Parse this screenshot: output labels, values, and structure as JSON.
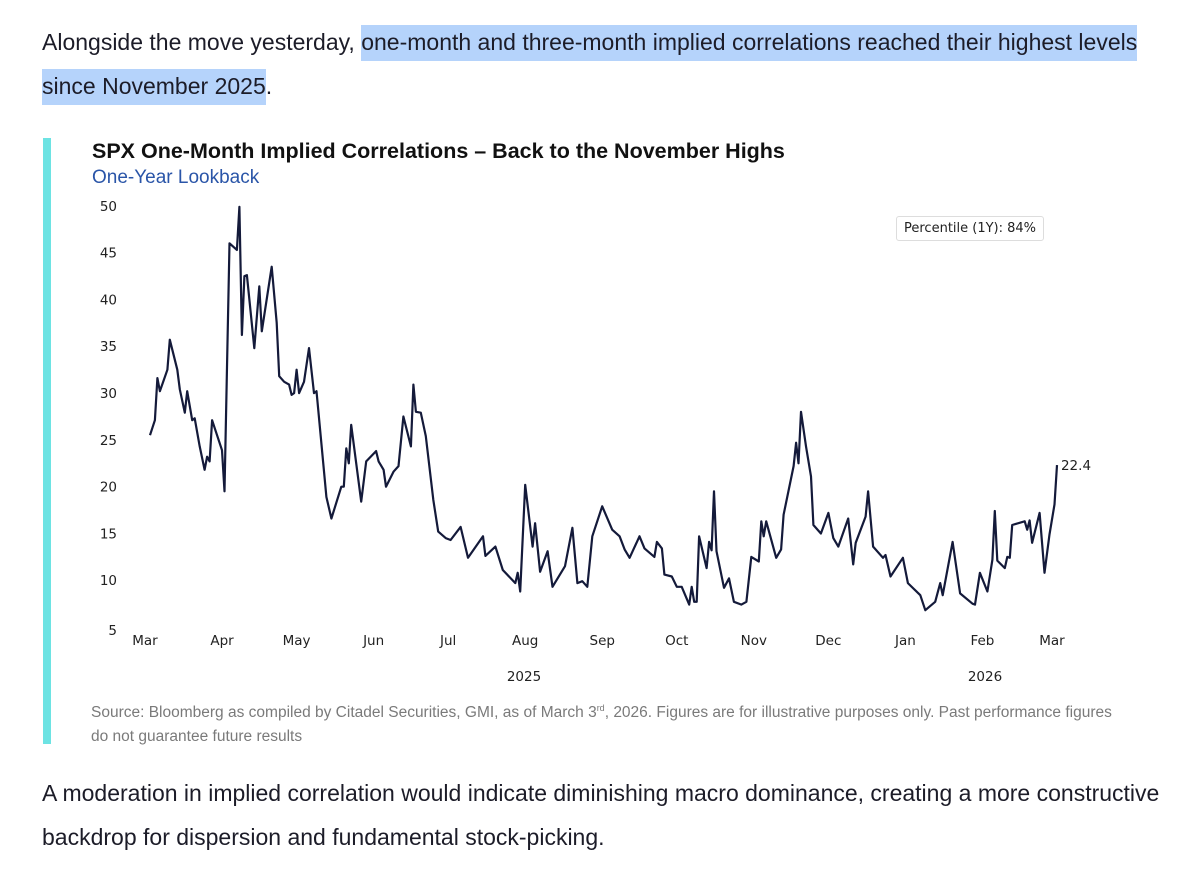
{
  "article": {
    "p1_before": "Alongside the move yesterday, ",
    "p1_highlight": "one-month and three-month implied correlations reached their highest levels since November 2025",
    "p1_after": ".",
    "p2": "A moderation in implied correlation would indicate diminishing macro dominance, creating a more constructive backdrop for dispersion and fundamental stock-picking.",
    "highlight_color": "#b5d3fb",
    "accent_color": "#6de3e3"
  },
  "chart_data": {
    "type": "line",
    "title": "SPX One-Month Implied Correlations – Back to the November Highs",
    "subtitle": "One-Year Lookback",
    "annotation_box": "Percentile (1Y): 84%",
    "last_value_label": "22.4",
    "ylim": [
      5,
      50
    ],
    "yticks": [
      "5",
      "10",
      "15",
      "20",
      "25",
      "30",
      "35",
      "40",
      "45",
      "50"
    ],
    "xlim": [
      "2025-03-01",
      "2026-03-01"
    ],
    "xtick_labels": [
      "Mar",
      "Apr",
      "May",
      "Jun",
      "Jul",
      "Aug",
      "Sep",
      "Oct",
      "Nov",
      "Dec",
      "Jan",
      "Feb",
      "Mar"
    ],
    "year_labels": [
      "2025",
      "2026"
    ],
    "grid": false,
    "line_color": "#141a3a",
    "source": "Source: Bloomberg as compiled by Citadel Securities, GMI, as of March 3",
    "source_sup": "rd",
    "source_rest": ", 2026. Figures are for illustrative purposes only. Past performance figures do not guarantee future results",
    "series": [
      {
        "points": [
          [
            "2025-03-03",
            25.6
          ],
          [
            "2025-03-05",
            27.2
          ],
          [
            "2025-03-06",
            31.7
          ],
          [
            "2025-03-07",
            30.3
          ],
          [
            "2025-03-10",
            32.6
          ],
          [
            "2025-03-11",
            35.8
          ],
          [
            "2025-03-14",
            32.6
          ],
          [
            "2025-03-15",
            30.5
          ],
          [
            "2025-03-17",
            28
          ],
          [
            "2025-03-18",
            30.3
          ],
          [
            "2025-03-20",
            27.2
          ],
          [
            "2025-03-21",
            27.4
          ],
          [
            "2025-03-23",
            24.4
          ],
          [
            "2025-03-25",
            21.9
          ],
          [
            "2025-03-26",
            23.3
          ],
          [
            "2025-03-27",
            22.8
          ],
          [
            "2025-03-28",
            27.2
          ],
          [
            "2025-04-01",
            24
          ],
          [
            "2025-04-02",
            19.6
          ],
          [
            "2025-04-04",
            46.1
          ],
          [
            "2025-04-07",
            45.4
          ],
          [
            "2025-04-08",
            50
          ],
          [
            "2025-04-09",
            36.3
          ],
          [
            "2025-04-10",
            42.6
          ],
          [
            "2025-04-11",
            42.7
          ],
          [
            "2025-04-14",
            34.9
          ],
          [
            "2025-04-16",
            41.5
          ],
          [
            "2025-04-17",
            36.7
          ],
          [
            "2025-04-21",
            43.6
          ],
          [
            "2025-04-23",
            37.6
          ],
          [
            "2025-04-24",
            31.9
          ],
          [
            "2025-04-26",
            31.3
          ],
          [
            "2025-04-28",
            31
          ],
          [
            "2025-04-29",
            29.9
          ],
          [
            "2025-04-30",
            30.1
          ],
          [
            "2025-05-01",
            32.6
          ],
          [
            "2025-05-02",
            30.1
          ],
          [
            "2025-05-04",
            31.3
          ],
          [
            "2025-05-06",
            34.9
          ],
          [
            "2025-05-08",
            30.1
          ],
          [
            "2025-05-09",
            30.3
          ],
          [
            "2025-05-13",
            19.0
          ],
          [
            "2025-05-15",
            16.7
          ],
          [
            "2025-05-19",
            20.1
          ],
          [
            "2025-05-20",
            20.1
          ],
          [
            "2025-05-21",
            24.2
          ],
          [
            "2025-05-22",
            22.6
          ],
          [
            "2025-05-23",
            26.7
          ],
          [
            "2025-05-27",
            18.5
          ],
          [
            "2025-05-29",
            22.8
          ],
          [
            "2025-06-02",
            23.9
          ],
          [
            "2025-06-03",
            22.8
          ],
          [
            "2025-06-05",
            21.9
          ],
          [
            "2025-06-06",
            20.1
          ],
          [
            "2025-06-09",
            21.7
          ],
          [
            "2025-06-11",
            22.3
          ],
          [
            "2025-06-13",
            27.6
          ],
          [
            "2025-06-16",
            24.4
          ],
          [
            "2025-06-17",
            31
          ],
          [
            "2025-06-18",
            28.1
          ],
          [
            "2025-06-20",
            28
          ],
          [
            "2025-06-22",
            25.5
          ],
          [
            "2025-06-25",
            18.7
          ],
          [
            "2025-06-27",
            15.3
          ],
          [
            "2025-06-30",
            14.6
          ],
          [
            "2025-07-02",
            14.4
          ],
          [
            "2025-07-06",
            15.8
          ],
          [
            "2025-07-09",
            12.5
          ],
          [
            "2025-07-15",
            14.8
          ],
          [
            "2025-07-16",
            12.7
          ],
          [
            "2025-07-20",
            13.7
          ],
          [
            "2025-07-23",
            11.2
          ],
          [
            "2025-07-28",
            9.8
          ],
          [
            "2025-07-29",
            10.9
          ],
          [
            "2025-07-30",
            8.9
          ],
          [
            "2025-08-01",
            20.3
          ],
          [
            "2025-08-04",
            13.7
          ],
          [
            "2025-08-05",
            16.2
          ],
          [
            "2025-08-07",
            11.0
          ],
          [
            "2025-08-10",
            13.2
          ],
          [
            "2025-08-12",
            9.4
          ],
          [
            "2025-08-17",
            11.6
          ],
          [
            "2025-08-20",
            15.7
          ],
          [
            "2025-08-22",
            9.8
          ],
          [
            "2025-08-24",
            10
          ],
          [
            "2025-08-26",
            9.4
          ],
          [
            "2025-08-28",
            14.8
          ],
          [
            "2025-09-01",
            18.0
          ],
          [
            "2025-09-05",
            15.5
          ],
          [
            "2025-09-08",
            14.8
          ],
          [
            "2025-09-10",
            13.4
          ],
          [
            "2025-09-12",
            12.5
          ],
          [
            "2025-09-16",
            14.8
          ],
          [
            "2025-09-18",
            13.5
          ],
          [
            "2025-09-22",
            12.6
          ],
          [
            "2025-09-23",
            14.2
          ],
          [
            "2025-09-25",
            13.5
          ],
          [
            "2025-09-26",
            10.7
          ],
          [
            "2025-09-29",
            10.5
          ],
          [
            "2025-10-01",
            9.4
          ],
          [
            "2025-10-03",
            9.4
          ],
          [
            "2025-10-06",
            7.5
          ],
          [
            "2025-10-07",
            9.4
          ],
          [
            "2025-10-08",
            7.8
          ],
          [
            "2025-10-09",
            7.8
          ],
          [
            "2025-10-10",
            14.8
          ],
          [
            "2025-10-13",
            11.4
          ],
          [
            "2025-10-14",
            14.2
          ],
          [
            "2025-10-15",
            13.3
          ],
          [
            "2025-10-16",
            19.6
          ],
          [
            "2025-10-17",
            13.2
          ],
          [
            "2025-10-20",
            9.3
          ],
          [
            "2025-10-22",
            10.3
          ],
          [
            "2025-10-24",
            7.8
          ],
          [
            "2025-10-27",
            7.5
          ],
          [
            "2025-10-29",
            7.8
          ],
          [
            "2025-10-31",
            12.6
          ],
          [
            "2025-11-03",
            12.1
          ],
          [
            "2025-11-04",
            16.4
          ],
          [
            "2025-11-05",
            14.8
          ],
          [
            "2025-11-06",
            16.4
          ],
          [
            "2025-11-10",
            12.5
          ],
          [
            "2025-11-12",
            13.4
          ],
          [
            "2025-11-13",
            17.1
          ],
          [
            "2025-11-17",
            22.3
          ],
          [
            "2025-11-18",
            24.8
          ],
          [
            "2025-11-19",
            22.6
          ],
          [
            "2025-11-20",
            28.1
          ],
          [
            "2025-11-22",
            24.4
          ],
          [
            "2025-11-24",
            21.2
          ],
          [
            "2025-11-25",
            16
          ],
          [
            "2025-11-28",
            15.1
          ],
          [
            "2025-12-01",
            17.3
          ],
          [
            "2025-12-03",
            14.6
          ],
          [
            "2025-12-05",
            13.7
          ],
          [
            "2025-12-09",
            16.7
          ],
          [
            "2025-12-11",
            11.8
          ],
          [
            "2025-12-12",
            14.1
          ],
          [
            "2025-12-16",
            16.9
          ],
          [
            "2025-12-17",
            19.6
          ],
          [
            "2025-12-19",
            13.7
          ],
          [
            "2025-12-23",
            12.5
          ],
          [
            "2025-12-24",
            12.8
          ],
          [
            "2025-12-26",
            10.5
          ],
          [
            "2025-12-31",
            12.5
          ],
          [
            "2026-01-02",
            9.8
          ],
          [
            "2026-01-07",
            8.5
          ],
          [
            "2026-01-09",
            6.9
          ],
          [
            "2026-01-13",
            7.8
          ],
          [
            "2026-01-15",
            9.8
          ],
          [
            "2026-01-16",
            8.5
          ],
          [
            "2026-01-20",
            14.2
          ],
          [
            "2026-01-23",
            8.7
          ],
          [
            "2026-01-28",
            7.6
          ],
          [
            "2026-01-29",
            7.5
          ],
          [
            "2026-01-31",
            10.9
          ],
          [
            "2026-02-03",
            8.9
          ],
          [
            "2026-02-05",
            12.3
          ],
          [
            "2026-02-06",
            17.5
          ],
          [
            "2026-02-07",
            12.2
          ],
          [
            "2026-02-10",
            11.4
          ],
          [
            "2026-02-11",
            12.6
          ],
          [
            "2026-02-12",
            12.5
          ],
          [
            "2026-02-13",
            16
          ],
          [
            "2026-02-18",
            16.4
          ],
          [
            "2026-02-19",
            15.5
          ],
          [
            "2026-02-20",
            16.5
          ],
          [
            "2026-02-21",
            14.1
          ],
          [
            "2026-02-24",
            17.3
          ],
          [
            "2026-02-26",
            10.9
          ],
          [
            "2026-02-28",
            15
          ],
          [
            "2026-03-02",
            18.2
          ],
          [
            "2026-03-03",
            22.4
          ]
        ]
      }
    ]
  }
}
